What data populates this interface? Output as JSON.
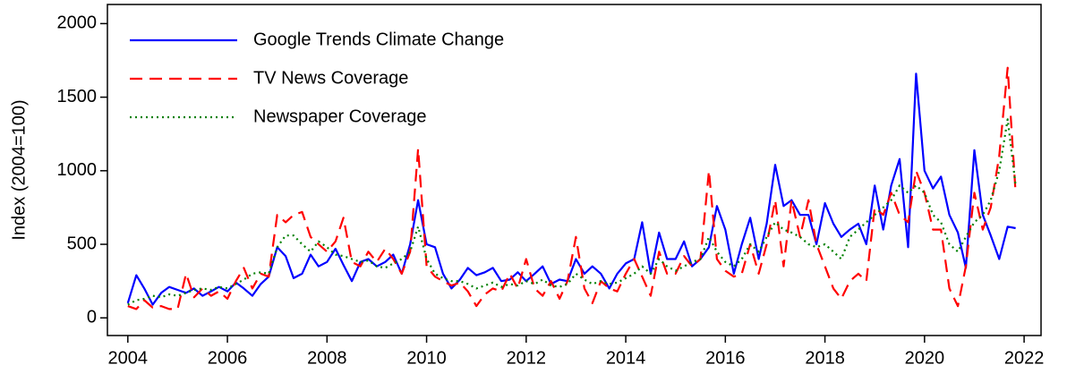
{
  "chart_data": {
    "type": "line",
    "y_label": "Index (2004=100)",
    "x": [
      2004,
      2004.17,
      2004.33,
      2004.5,
      2004.67,
      2004.83,
      2005,
      2005.17,
      2005.33,
      2005.5,
      2005.67,
      2005.83,
      2006,
      2006.17,
      2006.33,
      2006.5,
      2006.67,
      2006.83,
      2007,
      2007.17,
      2007.33,
      2007.5,
      2007.67,
      2007.83,
      2008,
      2008.17,
      2008.33,
      2008.5,
      2008.67,
      2008.83,
      2009,
      2009.17,
      2009.33,
      2009.5,
      2009.67,
      2009.83,
      2010,
      2010.17,
      2010.33,
      2010.5,
      2010.67,
      2010.83,
      2011,
      2011.17,
      2011.33,
      2011.5,
      2011.67,
      2011.83,
      2012,
      2012.17,
      2012.33,
      2012.5,
      2012.67,
      2012.83,
      2013,
      2013.17,
      2013.33,
      2013.5,
      2013.67,
      2013.83,
      2014,
      2014.17,
      2014.33,
      2014.5,
      2014.67,
      2014.83,
      2015,
      2015.17,
      2015.33,
      2015.5,
      2015.67,
      2015.83,
      2016,
      2016.17,
      2016.33,
      2016.5,
      2016.67,
      2016.83,
      2017,
      2017.17,
      2017.33,
      2017.5,
      2017.67,
      2017.83,
      2018,
      2018.17,
      2018.33,
      2018.5,
      2018.67,
      2018.83,
      2019,
      2019.17,
      2019.33,
      2019.5,
      2019.67,
      2019.83,
      2020,
      2020.17,
      2020.33,
      2020.5,
      2020.67,
      2020.83,
      2021,
      2021.17,
      2021.33,
      2021.5,
      2021.67,
      2021.83
    ],
    "series": [
      {
        "name": "Google Trends Climate Change",
        "color": "#0000ff",
        "dash": "none",
        "values": [
          100,
          290,
          200,
          90,
          170,
          210,
          190,
          170,
          200,
          150,
          180,
          210,
          180,
          240,
          200,
          150,
          230,
          280,
          480,
          420,
          270,
          300,
          430,
          350,
          380,
          470,
          360,
          250,
          380,
          400,
          350,
          380,
          430,
          300,
          500,
          800,
          500,
          480,
          300,
          200,
          260,
          340,
          290,
          310,
          340,
          250,
          260,
          310,
          250,
          300,
          350,
          230,
          260,
          250,
          400,
          300,
          350,
          300,
          200,
          300,
          370,
          400,
          650,
          300,
          580,
          400,
          400,
          520,
          350,
          400,
          480,
          760,
          600,
          300,
          500,
          680,
          400,
          640,
          1040,
          760,
          800,
          700,
          700,
          500,
          780,
          640,
          550,
          600,
          640,
          500,
          900,
          600,
          900,
          1080,
          480,
          1660,
          1000,
          880,
          960,
          700,
          580,
          340,
          1140,
          700,
          560,
          400,
          620,
          610
        ]
      },
      {
        "name": "TV News Coverage",
        "color": "#ff0000",
        "dash": "14,8",
        "values": [
          80,
          60,
          120,
          70,
          80,
          60,
          60,
          300,
          140,
          200,
          150,
          180,
          130,
          250,
          340,
          200,
          300,
          280,
          700,
          650,
          700,
          720,
          550,
          500,
          450,
          520,
          680,
          380,
          350,
          450,
          380,
          470,
          400,
          300,
          450,
          1150,
          350,
          280,
          250,
          220,
          240,
          180,
          80,
          160,
          200,
          180,
          300,
          200,
          400,
          200,
          150,
          250,
          130,
          250,
          550,
          200,
          100,
          250,
          200,
          180,
          300,
          400,
          280,
          150,
          450,
          300,
          300,
          420,
          350,
          400,
          1000,
          400,
          320,
          280,
          300,
          500,
          300,
          500,
          800,
          350,
          800,
          550,
          800,
          500,
          350,
          200,
          130,
          250,
          300,
          250,
          750,
          700,
          850,
          700,
          650,
          1000,
          850,
          600,
          600,
          200,
          80,
          350,
          850,
          600,
          750,
          1100,
          1700,
          850
        ]
      },
      {
        "name": "Newspaper Coverage",
        "color": "#008000",
        "dash": "2,4",
        "values": [
          90,
          120,
          130,
          150,
          140,
          160,
          150,
          170,
          190,
          200,
          190,
          210,
          200,
          230,
          260,
          300,
          310,
          300,
          480,
          560,
          560,
          500,
          450,
          520,
          480,
          430,
          420,
          400,
          380,
          390,
          350,
          340,
          370,
          400,
          450,
          620,
          400,
          300,
          270,
          250,
          250,
          230,
          200,
          220,
          240,
          210,
          230,
          220,
          250,
          230,
          260,
          220,
          210,
          230,
          300,
          260,
          230,
          250,
          230,
          240,
          270,
          300,
          350,
          300,
          400,
          350,
          320,
          350,
          380,
          400,
          550,
          450,
          380,
          350,
          400,
          500,
          450,
          550,
          650,
          600,
          580,
          550,
          500,
          480,
          500,
          450,
          400,
          550,
          600,
          650,
          700,
          750,
          800,
          900,
          850,
          900,
          850,
          700,
          650,
          500,
          450,
          550,
          650,
          700,
          800,
          1000,
          1350,
          900
        ]
      }
    ],
    "xlim": [
      2003.59,
      2022.34
    ],
    "ylim": [
      -120,
      2130
    ],
    "xticks": [
      2004,
      2006,
      2008,
      2010,
      2012,
      2014,
      2016,
      2018,
      2020,
      2022
    ],
    "yticks": [
      0,
      500,
      1000,
      1500,
      2000
    ],
    "legend": "upper-left"
  }
}
